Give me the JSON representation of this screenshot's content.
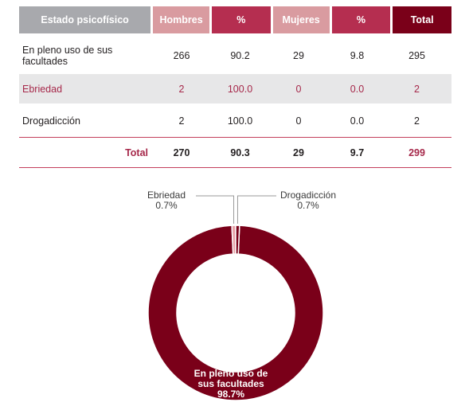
{
  "colors": {
    "header_dark": "#a8a9ad",
    "header_pink": "#d99ba0",
    "header_crimson": "#b52e50",
    "header_total": "#7a0019",
    "accent_text": "#a6284a",
    "donut_main": "#7a0019",
    "donut_minor": "#e8a0a6"
  },
  "table": {
    "headers": [
      "Estado psicofísico",
      "Hombres",
      "%",
      "Mujeres",
      "%",
      "Total"
    ],
    "rows": [
      [
        "En pleno uso de sus facultades",
        "266",
        "90.2",
        "29",
        "9.8",
        "295"
      ],
      [
        "Ebriedad",
        "2",
        "100.0",
        "0",
        "0.0",
        "2"
      ],
      [
        "Drogadicción",
        "2",
        "100.0",
        "0",
        "0.0",
        "2"
      ]
    ],
    "total_row": [
      "Total",
      "270",
      "90.3",
      "29",
      "9.7",
      "299"
    ]
  },
  "chart_data": {
    "type": "pie",
    "donut": true,
    "title": "",
    "slices": [
      {
        "label": "En pleno uso de sus facultades",
        "label_lines": [
          "En pleno uso de",
          "sus facultades"
        ],
        "value": 98.7,
        "display": "98.7%"
      },
      {
        "label": "Ebriedad",
        "label_lines": [
          "Ebriedad"
        ],
        "value": 0.7,
        "display": "0.7%"
      },
      {
        "label": "Drogadicción",
        "label_lines": [
          "Drogadicción"
        ],
        "value": 0.7,
        "display": "0.7%"
      }
    ]
  }
}
